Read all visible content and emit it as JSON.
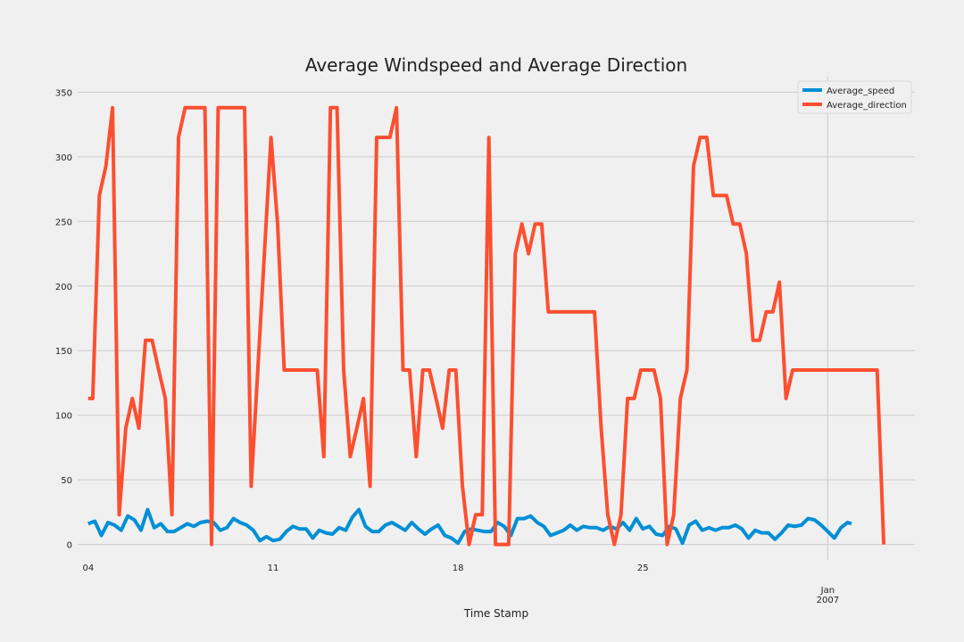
{
  "chart_data": {
    "type": "line",
    "title": "Average Windspeed and Average Direction",
    "xlabel": "Time Stamp",
    "ylabel": "",
    "ylim": [
      -12,
      362
    ],
    "xlim": [
      -0.4,
      31.3
    ],
    "grid": true,
    "legend_position": "top-right",
    "colors": {
      "background": "#f0f0f0",
      "grid": "#cbcbcb"
    },
    "yticks": [
      0,
      50,
      100,
      150,
      200,
      250,
      300,
      350
    ],
    "xticks": [
      {
        "x": 0,
        "label": "04",
        "label2": ""
      },
      {
        "x": 7,
        "label": "11",
        "label2": ""
      },
      {
        "x": 14,
        "label": "18",
        "label2": ""
      },
      {
        "x": 21,
        "label": "25",
        "label2": ""
      },
      {
        "x": 28,
        "label": "Jan",
        "label2": "2007"
      }
    ],
    "vertical_grid_at": [
      28
    ],
    "series": [
      {
        "name": "Average_speed",
        "color": "#008fd5",
        "points": [
          [
            0,
            16
          ],
          [
            0.25,
            18
          ],
          [
            0.5,
            7
          ],
          [
            0.75,
            17
          ],
          [
            1,
            15
          ],
          [
            1.25,
            11
          ],
          [
            1.5,
            22
          ],
          [
            1.75,
            19
          ],
          [
            2,
            11
          ],
          [
            2.25,
            27
          ],
          [
            2.5,
            13
          ],
          [
            2.75,
            16
          ],
          [
            3,
            10
          ],
          [
            3.25,
            10
          ],
          [
            3.5,
            13
          ],
          [
            3.75,
            16
          ],
          [
            4,
            14
          ],
          [
            4.25,
            17
          ],
          [
            4.5,
            18
          ],
          [
            4.75,
            17
          ],
          [
            5,
            11
          ],
          [
            5.25,
            13
          ],
          [
            5.5,
            20
          ],
          [
            5.75,
            17
          ],
          [
            6,
            15
          ],
          [
            6.25,
            11
          ],
          [
            6.5,
            3
          ],
          [
            6.75,
            6
          ],
          [
            7,
            3
          ],
          [
            7.25,
            4
          ],
          [
            7.5,
            10
          ],
          [
            7.75,
            14
          ],
          [
            8,
            12
          ],
          [
            8.25,
            12
          ],
          [
            8.5,
            5
          ],
          [
            8.75,
            11
          ],
          [
            9,
            9
          ],
          [
            9.25,
            8
          ],
          [
            9.5,
            13
          ],
          [
            9.75,
            11
          ],
          [
            10,
            21
          ],
          [
            10.25,
            27
          ],
          [
            10.5,
            14
          ],
          [
            10.75,
            10
          ],
          [
            11,
            10
          ],
          [
            11.25,
            15
          ],
          [
            11.5,
            17
          ],
          [
            11.75,
            14
          ],
          [
            12,
            11
          ],
          [
            12.25,
            17
          ],
          [
            12.5,
            12
          ],
          [
            12.75,
            8
          ],
          [
            13,
            12
          ],
          [
            13.25,
            15
          ],
          [
            13.5,
            7
          ],
          [
            13.75,
            5
          ],
          [
            14,
            1
          ],
          [
            14.25,
            10
          ],
          [
            14.5,
            12
          ],
          [
            14.75,
            11
          ],
          [
            15,
            10
          ],
          [
            15.25,
            10
          ],
          [
            15.5,
            17
          ],
          [
            15.75,
            14
          ],
          [
            16,
            7
          ],
          [
            16.25,
            20
          ],
          [
            16.5,
            20
          ],
          [
            16.75,
            22
          ],
          [
            17,
            17
          ],
          [
            17.25,
            14
          ],
          [
            17.5,
            7
          ],
          [
            17.75,
            9
          ],
          [
            18,
            11
          ],
          [
            18.25,
            15
          ],
          [
            18.5,
            11
          ],
          [
            18.75,
            14
          ],
          [
            19,
            13
          ],
          [
            19.25,
            13
          ],
          [
            19.5,
            11
          ],
          [
            19.75,
            14
          ],
          [
            20,
            12
          ],
          [
            20.25,
            17
          ],
          [
            20.5,
            11
          ],
          [
            20.75,
            20
          ],
          [
            21,
            12
          ],
          [
            21.25,
            14
          ],
          [
            21.5,
            8
          ],
          [
            21.75,
            7
          ],
          [
            22,
            14
          ],
          [
            22.25,
            12
          ],
          [
            22.5,
            1
          ],
          [
            22.75,
            15
          ],
          [
            23,
            18
          ],
          [
            23.25,
            11
          ],
          [
            23.5,
            13
          ],
          [
            23.75,
            11
          ],
          [
            24,
            13
          ],
          [
            24.25,
            13
          ],
          [
            24.5,
            15
          ],
          [
            24.75,
            12
          ],
          [
            25,
            5
          ],
          [
            25.25,
            11
          ],
          [
            25.5,
            9
          ],
          [
            25.75,
            9
          ],
          [
            26,
            4
          ],
          [
            26.25,
            9
          ],
          [
            26.5,
            15
          ],
          [
            26.75,
            14
          ],
          [
            27,
            15
          ],
          [
            27.25,
            20
          ],
          [
            27.5,
            19
          ],
          [
            27.75,
            15
          ],
          [
            28,
            10
          ],
          [
            28.25,
            5
          ],
          [
            28.5,
            13
          ],
          [
            28.75,
            17
          ],
          [
            28.9,
            16
          ]
        ]
      },
      {
        "name": "Average_direction",
        "color": "#fc4f30",
        "points": [
          [
            0,
            113
          ],
          [
            0.17,
            113
          ],
          [
            0.42,
            270
          ],
          [
            0.67,
            293
          ],
          [
            0.92,
            338
          ],
          [
            1.17,
            23
          ],
          [
            1.42,
            90
          ],
          [
            1.67,
            113
          ],
          [
            1.92,
            90
          ],
          [
            2.17,
            158
          ],
          [
            2.42,
            158
          ],
          [
            2.67,
            135
          ],
          [
            2.92,
            113
          ],
          [
            3.17,
            23
          ],
          [
            3.42,
            315
          ],
          [
            3.67,
            338
          ],
          [
            3.92,
            338
          ],
          [
            4.17,
            338
          ],
          [
            4.42,
            338
          ],
          [
            4.67,
            0
          ],
          [
            4.92,
            338
          ],
          [
            5.17,
            338
          ],
          [
            5.42,
            338
          ],
          [
            5.67,
            338
          ],
          [
            5.92,
            338
          ],
          [
            6.17,
            45
          ],
          [
            6.42,
            135
          ],
          [
            6.67,
            225
          ],
          [
            6.92,
            315
          ],
          [
            7.17,
            248
          ],
          [
            7.42,
            135
          ],
          [
            7.67,
            135
          ],
          [
            7.92,
            135
          ],
          [
            8.17,
            135
          ],
          [
            8.42,
            135
          ],
          [
            8.67,
            135
          ],
          [
            8.92,
            68
          ],
          [
            9.17,
            338
          ],
          [
            9.42,
            338
          ],
          [
            9.67,
            135
          ],
          [
            9.92,
            68
          ],
          [
            10.17,
            90
          ],
          [
            10.42,
            113
          ],
          [
            10.67,
            45
          ],
          [
            10.92,
            315
          ],
          [
            11.17,
            315
          ],
          [
            11.42,
            315
          ],
          [
            11.67,
            338
          ],
          [
            11.92,
            135
          ],
          [
            12.17,
            135
          ],
          [
            12.42,
            68
          ],
          [
            12.67,
            135
          ],
          [
            12.92,
            135
          ],
          [
            13.17,
            113
          ],
          [
            13.42,
            90
          ],
          [
            13.67,
            135
          ],
          [
            13.92,
            135
          ],
          [
            14.17,
            45
          ],
          [
            14.42,
            0
          ],
          [
            14.67,
            23
          ],
          [
            14.92,
            23
          ],
          [
            15.17,
            315
          ],
          [
            15.42,
            0
          ],
          [
            15.67,
            0
          ],
          [
            15.92,
            0
          ],
          [
            16.17,
            225
          ],
          [
            16.42,
            248
          ],
          [
            16.67,
            225
          ],
          [
            16.92,
            248
          ],
          [
            17.17,
            248
          ],
          [
            17.42,
            180
          ],
          [
            17.67,
            180
          ],
          [
            17.92,
            180
          ],
          [
            18.17,
            180
          ],
          [
            18.42,
            180
          ],
          [
            18.67,
            180
          ],
          [
            18.92,
            180
          ],
          [
            19.17,
            180
          ],
          [
            19.42,
            90
          ],
          [
            19.67,
            23
          ],
          [
            19.92,
            0
          ],
          [
            20.17,
            23
          ],
          [
            20.42,
            113
          ],
          [
            20.67,
            113
          ],
          [
            20.92,
            135
          ],
          [
            21.17,
            135
          ],
          [
            21.42,
            135
          ],
          [
            21.67,
            113
          ],
          [
            21.92,
            0
          ],
          [
            22.17,
            23
          ],
          [
            22.42,
            113
          ],
          [
            22.67,
            135
          ],
          [
            22.92,
            293
          ],
          [
            23.17,
            315
          ],
          [
            23.42,
            315
          ],
          [
            23.67,
            270
          ],
          [
            23.92,
            270
          ],
          [
            24.17,
            270
          ],
          [
            24.42,
            248
          ],
          [
            24.67,
            248
          ],
          [
            24.92,
            225
          ],
          [
            25.17,
            158
          ],
          [
            25.42,
            158
          ],
          [
            25.67,
            180
          ],
          [
            25.92,
            180
          ],
          [
            26.17,
            203
          ],
          [
            26.42,
            113
          ],
          [
            26.67,
            135
          ],
          [
            26.92,
            135
          ],
          [
            27.17,
            135
          ],
          [
            27.42,
            135
          ],
          [
            27.67,
            135
          ],
          [
            27.92,
            135
          ],
          [
            28.17,
            135
          ],
          [
            28.42,
            135
          ],
          [
            28.67,
            135
          ],
          [
            28.92,
            135
          ],
          [
            29.17,
            135
          ],
          [
            29.42,
            135
          ],
          [
            29.67,
            135
          ],
          [
            29.87,
            135
          ],
          [
            30.12,
            0
          ]
        ]
      }
    ]
  }
}
